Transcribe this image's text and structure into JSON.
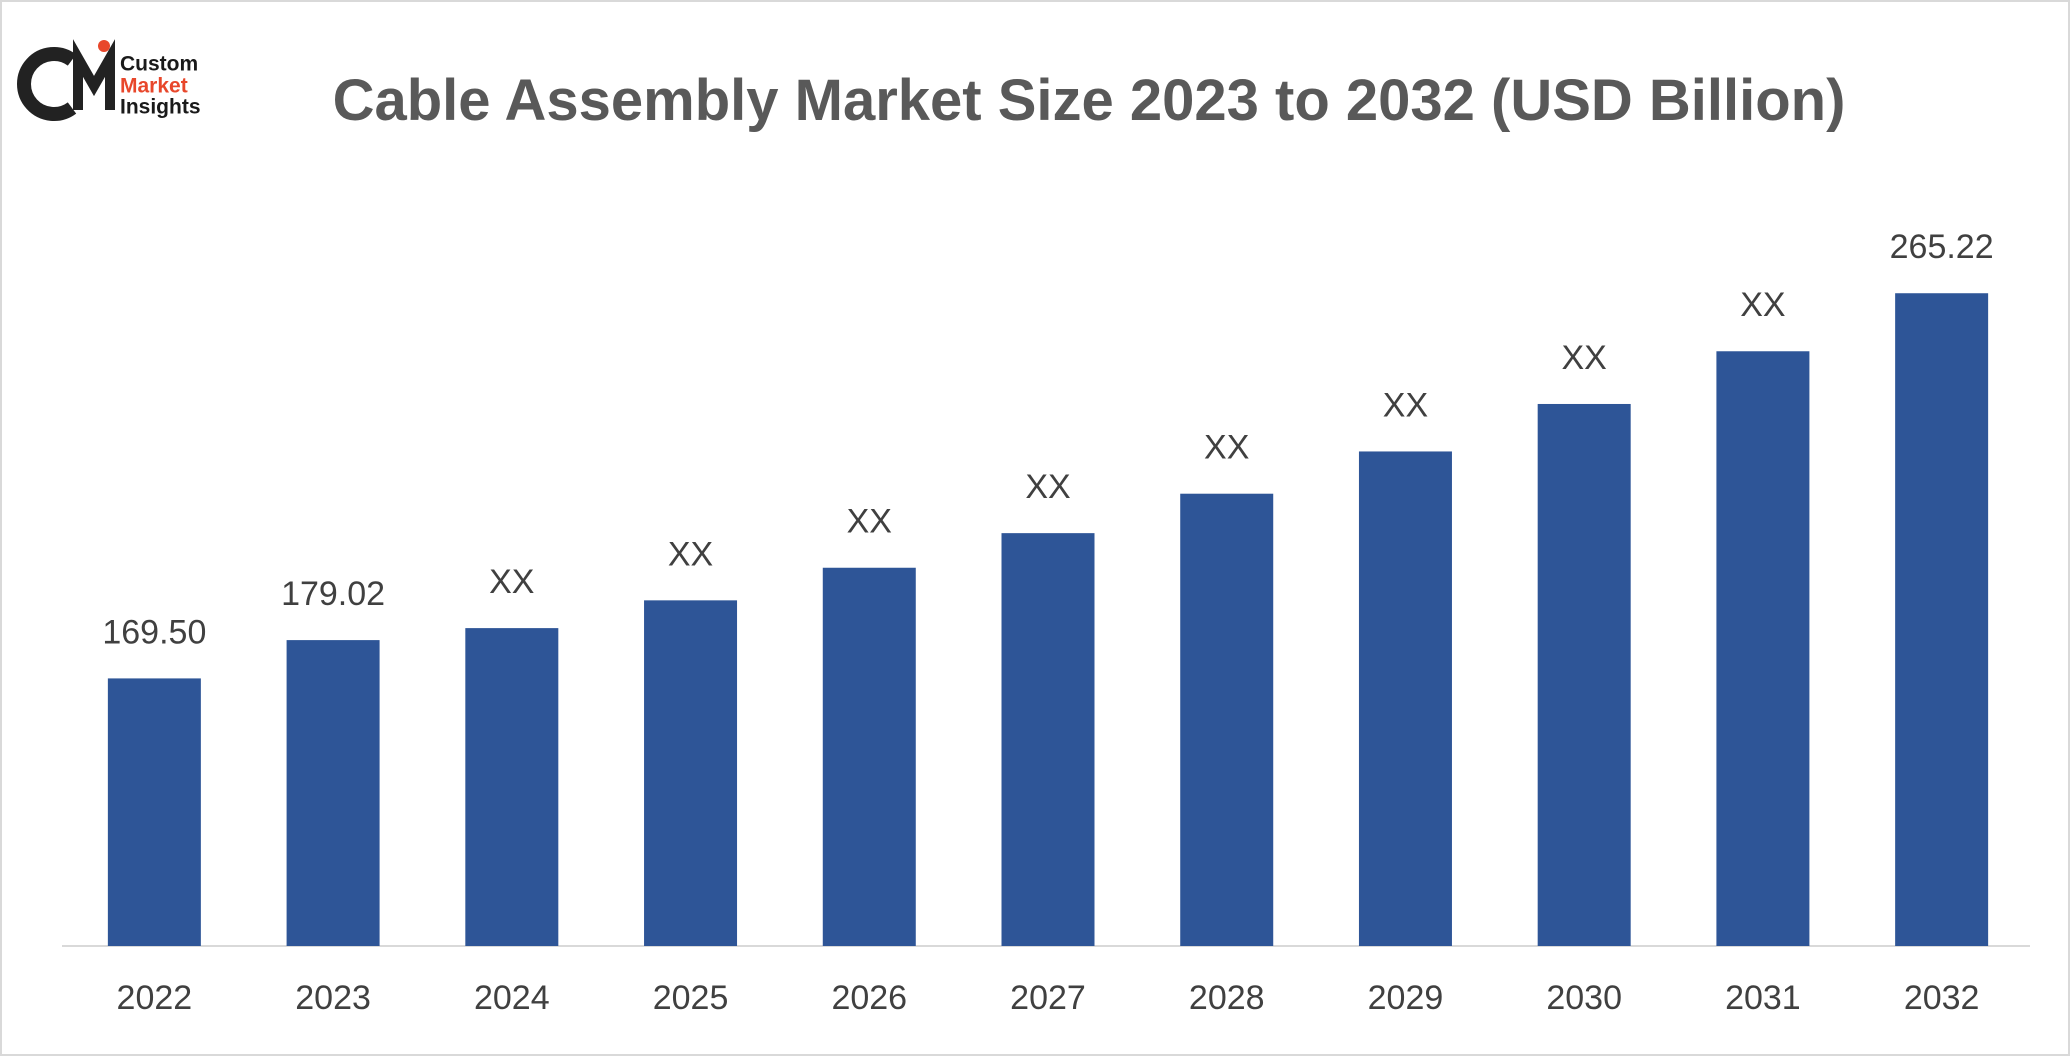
{
  "logo": [
    "Custom",
    "Market",
    "Insights"
  ],
  "chart_data": {
    "type": "bar",
    "title": "Cable Assembly Market Size 2023 to 2032 (USD Billion)",
    "categories": [
      "2022",
      "2023",
      "2024",
      "2025",
      "2026",
      "2027",
      "2028",
      "2029",
      "2030",
      "2031",
      "2032"
    ],
    "values": [
      169.5,
      179.02,
      182.0,
      188.9,
      197.0,
      205.6,
      215.4,
      225.9,
      237.7,
      250.8,
      265.22
    ],
    "value_labels": [
      "169.50",
      "179.02",
      "XX",
      "XX",
      "XX",
      "XX",
      "XX",
      "XX",
      "XX",
      "XX",
      "265.22"
    ],
    "color": "#2e5597",
    "ylim": [
      103,
      270
    ]
  }
}
